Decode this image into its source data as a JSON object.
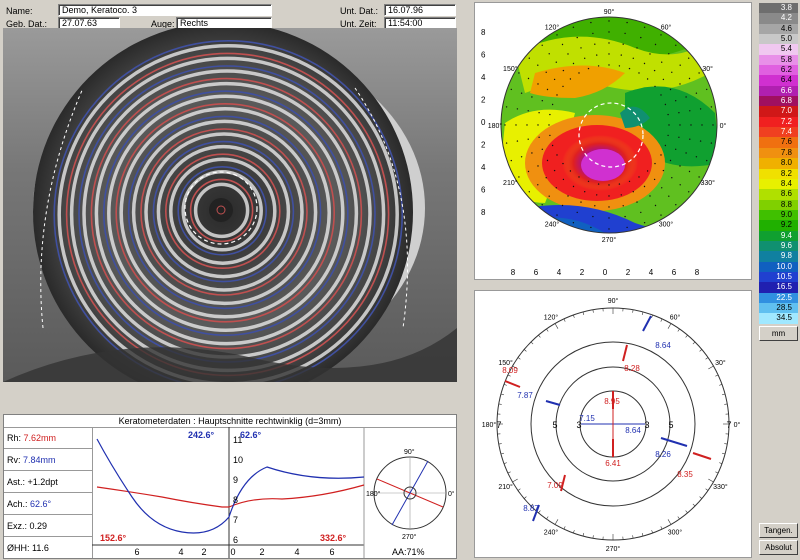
{
  "header": {
    "name_label": "Name:",
    "name_value": "Demo, Keratoco. 3",
    "dob_label": "Geb. Dat.:",
    "dob_value": "27.07.63",
    "eye_label": "Auge:",
    "eye_value": "Rechts",
    "exam_date_label": "Unt. Dat.:",
    "exam_date_value": "16.07.96",
    "exam_time_label": "Unt. Zeit:",
    "exam_time_value": "11:54:00"
  },
  "topo_map": {
    "angle_labels": [
      "90°",
      "60°",
      "30°",
      "0°",
      "330°",
      "300°",
      "270°",
      "240°",
      "210°",
      "180°",
      "150°",
      "120°"
    ],
    "axis_ticks_y": [
      "8",
      "6",
      "4",
      "2",
      "0",
      "2",
      "4",
      "6",
      "8"
    ],
    "axis_ticks_x": [
      "8",
      "6",
      "4",
      "2",
      "0",
      "2",
      "4",
      "6",
      "8"
    ]
  },
  "axial_map": {
    "angle_labels": [
      "90°",
      "60°",
      "30°",
      "0°",
      "330°",
      "300°",
      "270°",
      "240°",
      "210°",
      "180°",
      "150°",
      "120°"
    ],
    "ring_labels": [
      "7",
      "5",
      "3",
      "3",
      "5",
      "7"
    ],
    "values": [
      {
        "text": "8.64",
        "color": "#2030b0"
      },
      {
        "text": "8.09",
        "color": "#d02020"
      },
      {
        "text": "8.28",
        "color": "#d02020"
      },
      {
        "text": "7.87",
        "color": "#2030b0"
      },
      {
        "text": "8.95",
        "color": "#d02020"
      },
      {
        "text": "7.15",
        "color": "#2030b0"
      },
      {
        "text": "8.64",
        "color": "#2030b0"
      },
      {
        "text": "6.41",
        "color": "#d02020"
      },
      {
        "text": "8.26",
        "color": "#2030b0"
      },
      {
        "text": "8.35",
        "color": "#d02020"
      },
      {
        "text": "7.09",
        "color": "#d02020"
      },
      {
        "text": "8.87",
        "color": "#2030b0"
      }
    ]
  },
  "color_scale": [
    {
      "value": "3.8",
      "color": "#6e6e6e",
      "text": "#fff"
    },
    {
      "value": "4.2",
      "color": "#8a8a8a",
      "text": "#fff"
    },
    {
      "value": "4.6",
      "color": "#a6a6a6",
      "text": "#000"
    },
    {
      "value": "5.0",
      "color": "#c8c8c8",
      "text": "#000"
    },
    {
      "value": "5.4",
      "color": "#f0c8f0",
      "text": "#000"
    },
    {
      "value": "5.8",
      "color": "#e890e8",
      "text": "#000"
    },
    {
      "value": "6.2",
      "color": "#e060e0",
      "text": "#000"
    },
    {
      "value": "6.4",
      "color": "#d030d0",
      "text": "#000"
    },
    {
      "value": "6.6",
      "color": "#b020b0",
      "text": "#fff"
    },
    {
      "value": "6.8",
      "color": "#a01060",
      "text": "#fff"
    },
    {
      "value": "7.0",
      "color": "#d01818",
      "text": "#fff"
    },
    {
      "value": "7.2",
      "color": "#f02020",
      "text": "#fff"
    },
    {
      "value": "7.4",
      "color": "#f04020",
      "text": "#fff"
    },
    {
      "value": "7.6",
      "color": "#f07010",
      "text": "#000"
    },
    {
      "value": "7.8",
      "color": "#f09010",
      "text": "#000"
    },
    {
      "value": "8.0",
      "color": "#f0b000",
      "text": "#000"
    },
    {
      "value": "8.2",
      "color": "#f0e000",
      "text": "#000"
    },
    {
      "value": "8.4",
      "color": "#e8f000",
      "text": "#000"
    },
    {
      "value": "8.6",
      "color": "#b0e000",
      "text": "#000"
    },
    {
      "value": "8.8",
      "color": "#80d000",
      "text": "#000"
    },
    {
      "value": "9.0",
      "color": "#40c000",
      "text": "#000"
    },
    {
      "value": "9.2",
      "color": "#20b000",
      "text": "#000"
    },
    {
      "value": "9.4",
      "color": "#10a030",
      "text": "#fff"
    },
    {
      "value": "9.6",
      "color": "#109070",
      "text": "#fff"
    },
    {
      "value": "9.8",
      "color": "#1080a0",
      "text": "#fff"
    },
    {
      "value": "10.0",
      "color": "#1060c0",
      "text": "#fff"
    },
    {
      "value": "10.5",
      "color": "#2040d0",
      "text": "#fff"
    },
    {
      "value": "16.5",
      "color": "#2020b0",
      "text": "#fff"
    },
    {
      "value": "22.5",
      "color": "#3090e0",
      "text": "#fff"
    },
    {
      "value": "28.5",
      "color": "#60c0f0",
      "text": "#000"
    },
    {
      "value": "34.5",
      "color": "#a0e8ff",
      "text": "#000"
    }
  ],
  "scale_buttons": {
    "unit": "mm",
    "mode": "Tangen.",
    "type": "Absolut"
  },
  "kerato": {
    "title": "Keratometerdaten : Hauptschnitte rechtwinklig (d=3mm)",
    "rh_label": "Rh:",
    "rh_value": "7.62mm",
    "rv_label": "Rv:",
    "rv_value": "7.84mm",
    "ast_label": "Ast.:",
    "ast_value": "+1.2dpt",
    "ach_label": "Ach.:",
    "ach_value": "62.6°",
    "exz_label": "Exz.:",
    "exz_value": "0.29",
    "ohh_label": "ØHH:",
    "ohh_value": "11.6",
    "angle_top_left": "242.6°",
    "angle_bottom_left": "152.6°",
    "angle_top_right": "62.6°",
    "angle_bottom_right": "332.6°",
    "x_ticks_left": [
      "6",
      "4",
      "2"
    ],
    "x_ticks_right": [
      "0",
      "2",
      "4",
      "6"
    ],
    "y_ticks": [
      "11",
      "10",
      "9",
      "8",
      "7",
      "6"
    ],
    "aa_text": "AA:71%",
    "mini_angles": [
      "90°",
      "0°",
      "180°",
      "270°"
    ]
  },
  "colors": {
    "red": "#d02020",
    "blue": "#2030b0"
  }
}
